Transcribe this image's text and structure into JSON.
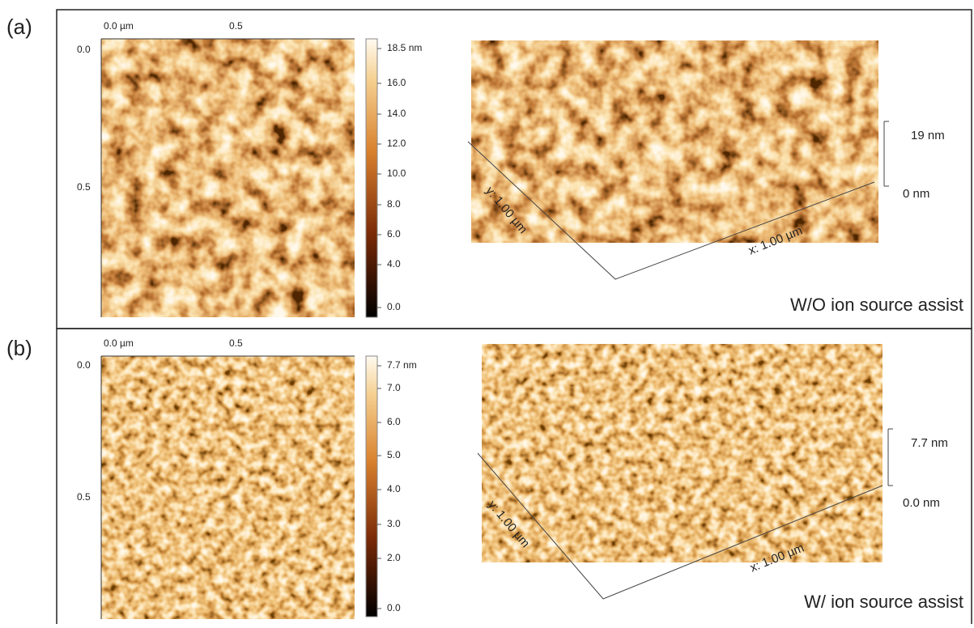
{
  "panels": [
    {
      "label": "(a)",
      "image_2d": {
        "x_ticks": [
          "0.0 µm",
          "0.5"
        ],
        "y_ticks": [
          "0.0",
          "0.5"
        ]
      },
      "color_scale": [
        "18.5 nm",
        "16.0",
        "14.0",
        "12.0",
        "10.0",
        "8.0",
        "6.0",
        "4.0",
        "0.0"
      ],
      "surface_3d": {
        "z_top": "19 nm",
        "z_bottom": "0 nm",
        "y_axis": "y: 1.00 µm",
        "x_axis": "x: 1.00 µm"
      },
      "caption": "W/O ion source assist"
    },
    {
      "label": "(b)",
      "image_2d": {
        "x_ticks": [
          "0.0 µm",
          "0.5"
        ],
        "y_ticks": [
          "0.0",
          "0.5"
        ]
      },
      "color_scale": [
        "7.7 nm",
        "7.0",
        "6.0",
        "5.0",
        "4.0",
        "3.0",
        "2.0",
        "0.0"
      ],
      "surface_3d": {
        "z_top": "7.7 nm",
        "z_bottom": "0.0 nm",
        "y_axis": "y: 1.00 µm",
        "x_axis": "x: 1.00 µm"
      },
      "caption": "W/ ion source assist"
    }
  ]
}
